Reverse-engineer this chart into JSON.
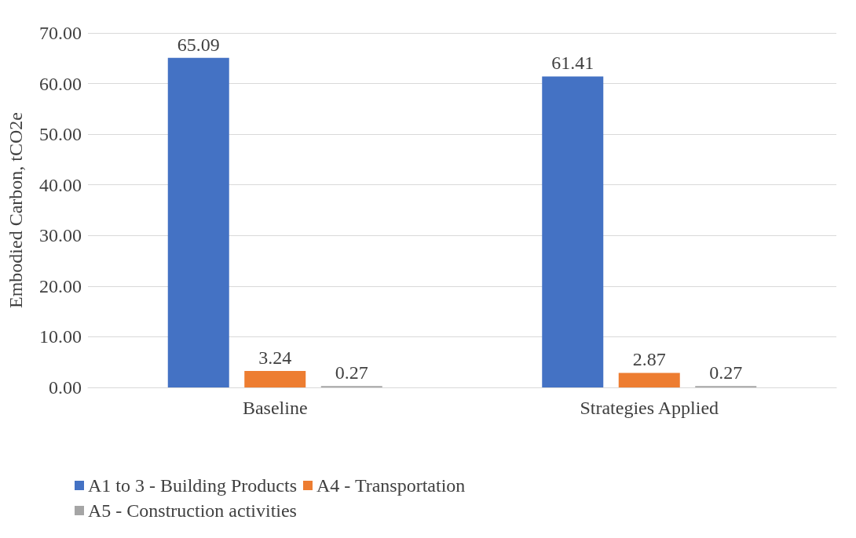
{
  "chart_data": {
    "type": "bar",
    "ylabel": "Embodied Carbon, tCO2e",
    "categories": [
      "Baseline",
      "Strategies Applied"
    ],
    "series": [
      {
        "name": "A1 to 3 - Building Products",
        "color": "#4472c4",
        "values": [
          65.09,
          61.41
        ]
      },
      {
        "name": "A4 - Transportation",
        "color": "#ed7d31",
        "values": [
          3.24,
          2.87
        ]
      },
      {
        "name": "A5 - Construction activities",
        "color": "#a5a5a5",
        "values": [
          0.27,
          0.27
        ]
      }
    ],
    "ylim": [
      0,
      70
    ],
    "yticks": [
      {
        "value": 0,
        "label": "0.00"
      },
      {
        "value": 10,
        "label": "10.00"
      },
      {
        "value": 20,
        "label": "20.00"
      },
      {
        "value": 30,
        "label": "30.00"
      },
      {
        "value": 40,
        "label": "40.00"
      },
      {
        "value": 50,
        "label": "50.00"
      },
      {
        "value": 60,
        "label": "60.00"
      },
      {
        "value": 70,
        "label": "70.00"
      }
    ],
    "grid": "y",
    "legend": "bottom",
    "data_labels": true
  }
}
